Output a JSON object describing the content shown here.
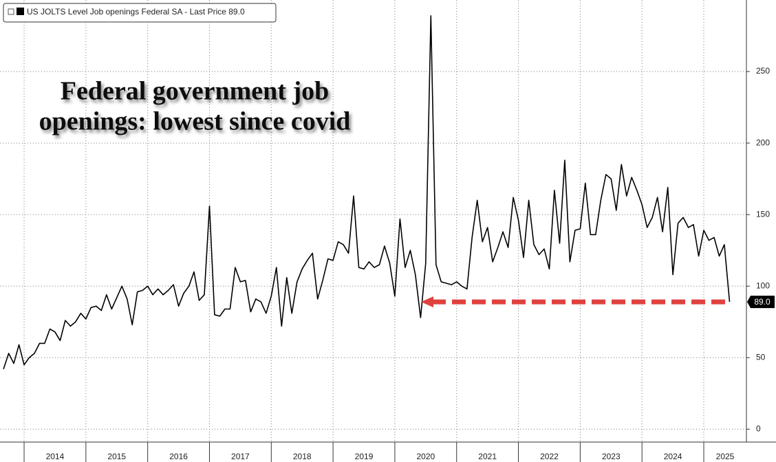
{
  "chart_data": {
    "type": "line",
    "title": "US JOLTS Level Job openings Federal SA - Last Price 89.0",
    "annotation": [
      "Federal government job",
      "openings: lowest since covid"
    ],
    "xlim": [
      2013.61,
      2025.69
    ],
    "xticks": [
      2014,
      2015,
      2016,
      2017,
      2018,
      2019,
      2020,
      2021,
      2022,
      2023,
      2024,
      2025
    ],
    "ylim": [
      -9,
      300
    ],
    "yticks": [
      0,
      50,
      100,
      150,
      200,
      250
    ],
    "grid": true,
    "price_tag": {
      "value": 89,
      "label": "89.0"
    },
    "x": [
      2013.667,
      2013.75,
      2013.833,
      2013.917,
      2014,
      2014.083,
      2014.167,
      2014.25,
      2014.333,
      2014.417,
      2014.5,
      2014.583,
      2014.667,
      2014.75,
      2014.833,
      2014.917,
      2015,
      2015.083,
      2015.167,
      2015.25,
      2015.333,
      2015.417,
      2015.5,
      2015.583,
      2015.667,
      2015.75,
      2015.833,
      2015.917,
      2016,
      2016.083,
      2016.167,
      2016.25,
      2016.333,
      2016.417,
      2016.5,
      2016.583,
      2016.667,
      2016.75,
      2016.833,
      2016.917,
      2017,
      2017.083,
      2017.167,
      2017.25,
      2017.333,
      2017.417,
      2017.5,
      2017.583,
      2017.667,
      2017.75,
      2017.833,
      2017.917,
      2018,
      2018.083,
      2018.167,
      2018.25,
      2018.333,
      2018.417,
      2018.5,
      2018.583,
      2018.667,
      2018.75,
      2018.833,
      2018.917,
      2019,
      2019.083,
      2019.167,
      2019.25,
      2019.333,
      2019.417,
      2019.5,
      2019.583,
      2019.667,
      2019.75,
      2019.833,
      2019.917,
      2020,
      2020.083,
      2020.167,
      2020.25,
      2020.333,
      2020.417,
      2020.5,
      2020.583,
      2020.667,
      2020.75,
      2020.833,
      2020.917,
      2021,
      2021.083,
      2021.167,
      2021.25,
      2021.333,
      2021.417,
      2021.5,
      2021.583,
      2021.667,
      2021.75,
      2021.833,
      2021.917,
      2022,
      2022.083,
      2022.167,
      2022.25,
      2022.333,
      2022.417,
      2022.5,
      2022.583,
      2022.667,
      2022.75,
      2022.833,
      2022.917,
      2023,
      2023.083,
      2023.167,
      2023.25,
      2023.333,
      2023.417,
      2023.5,
      2023.583,
      2023.667,
      2023.75,
      2023.833,
      2023.917,
      2024,
      2024.083,
      2024.167,
      2024.25,
      2024.333,
      2024.417,
      2024.5,
      2024.583,
      2024.667,
      2024.75,
      2024.833,
      2024.917,
      2025,
      2025.083,
      2025.167,
      2025.25,
      2025.333,
      2025.417
    ],
    "series": [
      {
        "name": "US JOLTS Level Job openings Federal SA",
        "color": "#000000",
        "values": [
          42,
          53,
          46,
          59,
          45,
          50,
          53,
          60,
          60,
          70,
          68,
          62,
          76,
          72,
          75,
          81,
          77,
          85,
          86,
          83,
          94,
          84,
          92,
          100,
          91,
          73,
          96,
          97,
          100,
          94,
          98,
          94,
          97,
          101,
          86,
          95,
          100,
          110,
          90,
          94,
          156,
          80,
          79,
          84,
          84,
          113,
          103,
          104,
          82,
          91,
          89,
          81,
          93,
          113,
          72,
          106,
          81,
          103,
          112,
          118,
          123,
          91,
          104,
          119,
          118,
          131,
          129,
          123,
          163,
          113,
          112,
          117,
          113,
          115,
          128,
          116,
          93,
          147,
          113,
          125,
          108,
          78,
          116,
          289,
          115,
          103,
          102,
          101,
          103,
          100,
          98,
          134,
          160,
          131,
          141,
          117,
          127,
          138,
          127,
          162,
          146,
          120,
          160,
          129,
          122,
          126,
          112,
          167,
          130,
          188,
          117,
          139,
          140,
          172,
          136,
          136,
          160,
          178,
          175,
          153,
          185,
          163,
          176,
          167,
          157,
          141,
          148,
          162,
          138,
          169,
          108,
          144,
          148,
          141,
          143,
          121,
          139,
          132,
          134,
          121,
          129,
          89
        ]
      }
    ]
  }
}
